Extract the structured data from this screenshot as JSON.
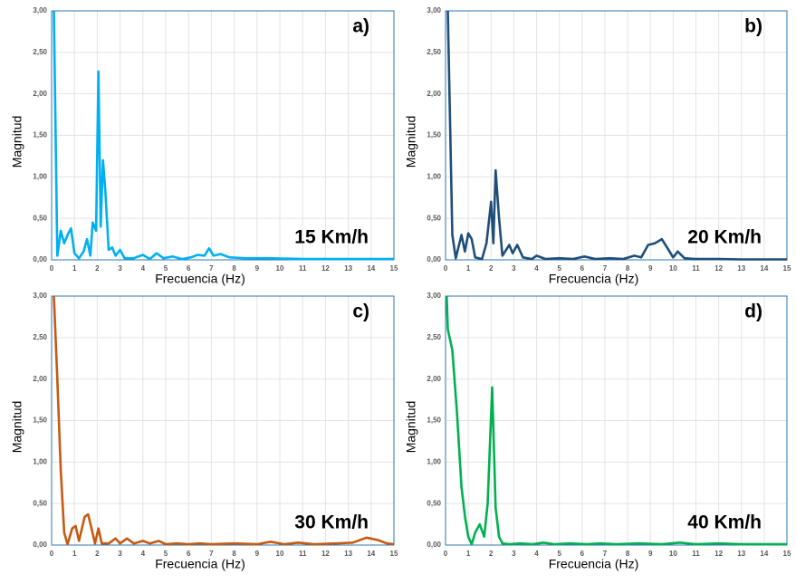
{
  "chart_data": [
    {
      "type": "line",
      "annotations": [
        "a)",
        "15 Km/h"
      ],
      "x_label": "Frecuencia (Hz)",
      "y_label": "Magnitud",
      "color": "#00b0f0",
      "x": [
        0.1,
        0.25,
        0.4,
        0.55,
        0.7,
        0.85,
        1.0,
        1.2,
        1.4,
        1.55,
        1.7,
        1.8,
        1.95,
        2.05,
        2.15,
        2.25,
        2.35,
        2.5,
        2.65,
        2.8,
        3.0,
        3.2,
        3.6,
        4.0,
        4.3,
        4.6,
        4.9,
        5.3,
        5.7,
        6.1,
        6.4,
        6.7,
        6.9,
        7.1,
        7.4,
        7.8,
        8.5,
        9.5,
        11,
        13,
        15
      ],
      "values": [
        3.0,
        0.05,
        0.35,
        0.2,
        0.3,
        0.38,
        0.08,
        0.02,
        0.1,
        0.25,
        0.05,
        0.45,
        0.35,
        2.27,
        0.4,
        1.2,
        0.85,
        0.12,
        0.15,
        0.05,
        0.12,
        0.02,
        0.02,
        0.06,
        0.01,
        0.08,
        0.02,
        0.04,
        0.01,
        0.03,
        0.06,
        0.05,
        0.14,
        0.05,
        0.07,
        0.03,
        0.02,
        0.02,
        0.01,
        0.01,
        0.01
      ],
      "xlim": [
        0,
        15
      ],
      "ylim": [
        0,
        3
      ],
      "xticks": [
        0,
        1,
        2,
        3,
        4,
        5,
        6,
        7,
        8,
        9,
        10,
        11,
        12,
        13,
        14,
        15
      ],
      "yticks": [
        {
          "value": 0,
          "label": "0,00"
        },
        {
          "value": 0.5,
          "label": "0,50"
        },
        {
          "value": 1,
          "label": "1,00"
        },
        {
          "value": 1.5,
          "label": "1,50"
        },
        {
          "value": 2,
          "label": "2,00"
        },
        {
          "value": 2.5,
          "label": "2,50"
        },
        {
          "value": 3,
          "label": "3,00"
        }
      ],
      "grid": true
    },
    {
      "type": "line",
      "annotations": [
        "b)",
        "20 Km/h"
      ],
      "x_label": "Frecuencia (Hz)",
      "y_label": "Magnitud",
      "color": "#1f4e79",
      "x": [
        0.1,
        0.3,
        0.45,
        0.7,
        0.85,
        1.0,
        1.15,
        1.3,
        1.6,
        1.8,
        2.0,
        2.1,
        2.2,
        2.35,
        2.5,
        2.8,
        2.95,
        3.15,
        3.4,
        3.8,
        4.0,
        4.4,
        5.0,
        5.6,
        6.1,
        6.6,
        7.2,
        7.8,
        8.3,
        8.6,
        8.9,
        9.2,
        9.5,
        9.8,
        10.0,
        10.2,
        10.5,
        11,
        12,
        13,
        15
      ],
      "values": [
        3.0,
        0.3,
        0.02,
        0.3,
        0.1,
        0.32,
        0.25,
        0.03,
        0.01,
        0.2,
        0.7,
        0.2,
        1.08,
        0.5,
        0.05,
        0.18,
        0.08,
        0.18,
        0.03,
        0.01,
        0.05,
        0.01,
        0.02,
        0.01,
        0.04,
        0.01,
        0.02,
        0.01,
        0.05,
        0.03,
        0.18,
        0.2,
        0.25,
        0.12,
        0.03,
        0.1,
        0.02,
        0.01,
        0.01,
        0.005,
        0.005
      ],
      "xlim": [
        0,
        15
      ],
      "ylim": [
        0,
        3
      ],
      "xticks": [
        0,
        1,
        2,
        3,
        4,
        5,
        6,
        7,
        8,
        9,
        10,
        11,
        12,
        13,
        14,
        15
      ],
      "yticks": [
        {
          "value": 0,
          "label": "0,00"
        },
        {
          "value": 0.5,
          "label": "0,50"
        },
        {
          "value": 1,
          "label": "1,00"
        },
        {
          "value": 1.5,
          "label": "1,50"
        },
        {
          "value": 2,
          "label": "2,00"
        },
        {
          "value": 2.5,
          "label": "2,50"
        },
        {
          "value": 3,
          "label": "3,00"
        }
      ],
      "grid": true
    },
    {
      "type": "line",
      "annotations": [
        "c)",
        "30 Km/h"
      ],
      "x_label": "Frecuencia (Hz)",
      "y_label": "Magnitud",
      "color": "#c55a11",
      "x": [
        0.1,
        0.25,
        0.4,
        0.55,
        0.7,
        0.9,
        1.05,
        1.2,
        1.45,
        1.6,
        1.75,
        1.9,
        2.05,
        2.2,
        2.5,
        2.8,
        3.0,
        3.3,
        3.6,
        4.0,
        4.3,
        4.7,
        5.0,
        5.5,
        6.0,
        6.5,
        7.0,
        8.0,
        9.0,
        9.6,
        10.2,
        10.8,
        11.5,
        12.5,
        13.2,
        13.8,
        14.3,
        14.7,
        15
      ],
      "values": [
        3.0,
        2.0,
        0.9,
        0.15,
        0.01,
        0.2,
        0.23,
        0.05,
        0.34,
        0.37,
        0.2,
        0.02,
        0.2,
        0.02,
        0.02,
        0.08,
        0.02,
        0.08,
        0.02,
        0.05,
        0.02,
        0.05,
        0.01,
        0.02,
        0.01,
        0.02,
        0.01,
        0.02,
        0.01,
        0.04,
        0.01,
        0.03,
        0.01,
        0.02,
        0.03,
        0.09,
        0.06,
        0.02,
        0.01
      ],
      "xlim": [
        0,
        15
      ],
      "ylim": [
        0,
        3
      ],
      "xticks": [
        0,
        1,
        2,
        3,
        4,
        5,
        6,
        7,
        8,
        9,
        10,
        11,
        12,
        13,
        14,
        15
      ],
      "yticks": [
        {
          "value": 0,
          "label": "0,00"
        },
        {
          "value": 0.5,
          "label": "0,50"
        },
        {
          "value": 1,
          "label": "1,00"
        },
        {
          "value": 1.5,
          "label": "1,50"
        },
        {
          "value": 2,
          "label": "2,00"
        },
        {
          "value": 2.5,
          "label": "2,50"
        },
        {
          "value": 3,
          "label": "3,00"
        }
      ],
      "grid": true
    },
    {
      "type": "line",
      "annotations": [
        "d)",
        "40 Km/h"
      ],
      "x_label": "Frecuencia (Hz)",
      "y_label": "Magnitud",
      "color": "#00b050",
      "x": [
        0.05,
        0.1,
        0.3,
        0.5,
        0.7,
        0.85,
        1.0,
        1.15,
        1.3,
        1.5,
        1.7,
        1.85,
        2.05,
        2.2,
        2.35,
        2.5,
        2.8,
        3.3,
        3.8,
        4.3,
        4.8,
        5.5,
        6.2,
        6.8,
        7.5,
        8.5,
        9.5,
        10.3,
        11,
        12,
        13,
        14,
        15
      ],
      "values": [
        3.0,
        2.6,
        2.35,
        1.6,
        0.7,
        0.35,
        0.1,
        0.01,
        0.15,
        0.25,
        0.1,
        0.5,
        1.9,
        0.45,
        0.1,
        0.02,
        0.01,
        0.02,
        0.01,
        0.03,
        0.01,
        0.02,
        0.01,
        0.02,
        0.01,
        0.02,
        0.01,
        0.03,
        0.01,
        0.02,
        0.01,
        0.01,
        0.01
      ],
      "xlim": [
        0,
        15
      ],
      "ylim": [
        0,
        3
      ],
      "xticks": [
        0,
        1,
        2,
        3,
        4,
        5,
        6,
        7,
        8,
        9,
        10,
        11,
        12,
        13,
        14,
        15
      ],
      "yticks": [
        {
          "value": 0,
          "label": "0,00"
        },
        {
          "value": 0.5,
          "label": "0,50"
        },
        {
          "value": 1,
          "label": "1,00"
        },
        {
          "value": 1.5,
          "label": "1,50"
        },
        {
          "value": 2,
          "label": "2,00"
        },
        {
          "value": 2.5,
          "label": "2,50"
        },
        {
          "value": 3,
          "label": "3,00"
        }
      ],
      "grid": true
    }
  ]
}
